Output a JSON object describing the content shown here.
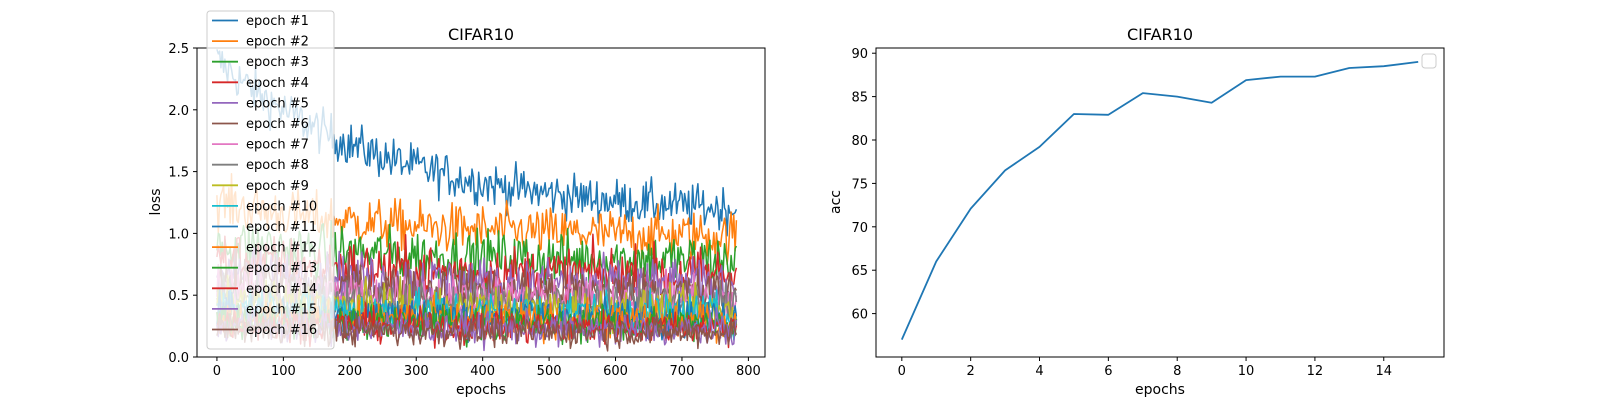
{
  "chart_data": [
    {
      "type": "line",
      "title": "CIFAR10",
      "xlabel": "epochs",
      "ylabel": "loss",
      "xlim": [
        -30,
        825
      ],
      "ylim": [
        0.0,
        2.5
      ],
      "xticks": [
        0,
        100,
        200,
        300,
        400,
        500,
        600,
        700,
        800
      ],
      "yticks": [
        0.0,
        0.5,
        1.0,
        1.5,
        2.0,
        2.5
      ],
      "xtick_labels": [
        "0",
        "100",
        "200",
        "300",
        "400",
        "500",
        "600",
        "700",
        "800"
      ],
      "ytick_labels": [
        "0.0",
        "0.5",
        "1.0",
        "1.5",
        "2.0",
        "2.5"
      ],
      "legend_position": "upper-left",
      "grid": false,
      "steps_per_epoch": 782,
      "series": [
        {
          "name": "epoch #1",
          "color": "#1f77b4",
          "start": 2.4,
          "end": 1.2,
          "noise": 0.16,
          "floor": 0.0
        },
        {
          "name": "epoch #2",
          "color": "#ff7f0e",
          "start": 1.25,
          "end": 0.98,
          "noise": 0.18,
          "floor": 0.0
        },
        {
          "name": "epoch #3",
          "color": "#2ca02c",
          "start": 0.92,
          "end": 0.78,
          "noise": 0.2,
          "floor": 0.0
        },
        {
          "name": "epoch #4",
          "color": "#d62728",
          "start": 0.8,
          "end": 0.66,
          "noise": 0.2,
          "floor": 0.0
        },
        {
          "name": "epoch #5",
          "color": "#9467bd",
          "start": 0.7,
          "end": 0.58,
          "noise": 0.19,
          "floor": 0.02
        },
        {
          "name": "epoch #6",
          "color": "#8c564b",
          "start": 0.62,
          "end": 0.52,
          "noise": 0.18,
          "floor": 0.02
        },
        {
          "name": "epoch #7",
          "color": "#e377c2",
          "start": 0.56,
          "end": 0.46,
          "noise": 0.17,
          "floor": 0.02
        },
        {
          "name": "epoch #8",
          "color": "#7f7f7f",
          "start": 0.5,
          "end": 0.42,
          "noise": 0.16,
          "floor": 0.03
        },
        {
          "name": "epoch #9",
          "color": "#bcbd22",
          "start": 0.46,
          "end": 0.38,
          "noise": 0.15,
          "floor": 0.03
        },
        {
          "name": "epoch #10",
          "color": "#17becf",
          "start": 0.42,
          "end": 0.35,
          "noise": 0.15,
          "floor": 0.03
        },
        {
          "name": "epoch #11",
          "color": "#1f77b4",
          "start": 0.38,
          "end": 0.32,
          "noise": 0.14,
          "floor": 0.03
        },
        {
          "name": "epoch #12",
          "color": "#ff7f0e",
          "start": 0.34,
          "end": 0.29,
          "noise": 0.13,
          "floor": 0.03
        },
        {
          "name": "epoch #13",
          "color": "#2ca02c",
          "start": 0.31,
          "end": 0.26,
          "noise": 0.13,
          "floor": 0.03
        },
        {
          "name": "epoch #14",
          "color": "#d62728",
          "start": 0.28,
          "end": 0.24,
          "noise": 0.12,
          "floor": 0.03
        },
        {
          "name": "epoch #15",
          "color": "#9467bd",
          "start": 0.26,
          "end": 0.22,
          "noise": 0.12,
          "floor": 0.03
        },
        {
          "name": "epoch #16",
          "color": "#8c564b",
          "start": 0.24,
          "end": 0.2,
          "noise": 0.11,
          "floor": 0.03
        }
      ]
    },
    {
      "type": "line",
      "title": "CIFAR10",
      "xlabel": "epochs",
      "ylabel": "acc",
      "xlim": [
        -0.75,
        15.75
      ],
      "ylim": [
        55.0,
        90.6
      ],
      "xticks": [
        0,
        2,
        4,
        6,
        8,
        10,
        12,
        14
      ],
      "yticks": [
        60,
        65,
        70,
        75,
        80,
        85,
        90
      ],
      "xtick_labels": [
        "0",
        "2",
        "4",
        "6",
        "8",
        "10",
        "12",
        "14"
      ],
      "ytick_labels": [
        "60",
        "65",
        "70",
        "75",
        "80",
        "85",
        "90"
      ],
      "legend_position": "upper-right",
      "legend_empty": true,
      "grid": false,
      "series": [
        {
          "color": "#1f77b4",
          "x": [
            0,
            1,
            2,
            3,
            4,
            5,
            6,
            7,
            8,
            9,
            10,
            11,
            12,
            13,
            14,
            15
          ],
          "y": [
            57.0,
            66.0,
            72.1,
            76.5,
            79.2,
            83.0,
            82.9,
            85.4,
            85.0,
            84.3,
            86.9,
            87.3,
            87.3,
            88.3,
            88.5,
            89.0
          ]
        }
      ]
    }
  ]
}
